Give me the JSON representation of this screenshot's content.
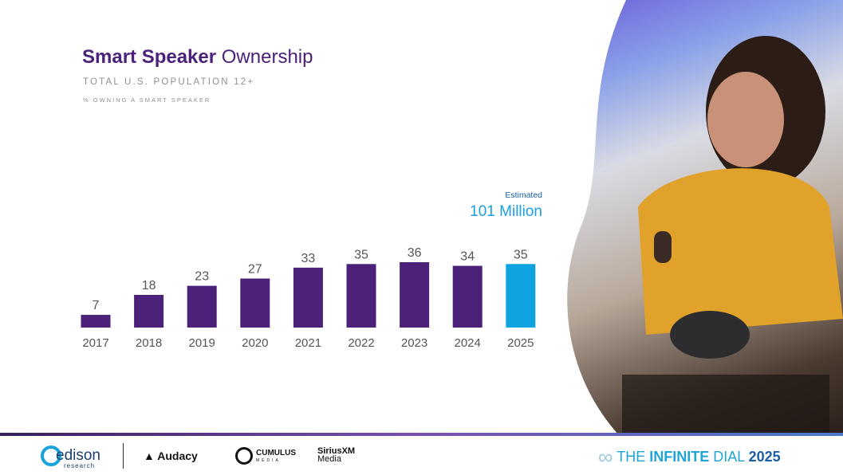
{
  "title": {
    "bold": "Smart Speaker",
    "rest": "Ownership"
  },
  "subtitle": "TOTAL U.S. POPULATION 12+",
  "note": "% OWNING A SMART SPEAKER",
  "estimate": {
    "label": "Estimated",
    "value": "101 Million"
  },
  "colors": {
    "primary": "#4b2179",
    "highlight": "#0fa3e2"
  },
  "chart_data": {
    "type": "bar",
    "title": "Smart Speaker Ownership",
    "xlabel": "",
    "ylabel": "% owning a smart speaker",
    "categories": [
      "2017",
      "2018",
      "2019",
      "2020",
      "2021",
      "2022",
      "2023",
      "2024",
      "2025"
    ],
    "values": [
      7,
      18,
      23,
      27,
      33,
      35,
      36,
      34,
      35
    ],
    "highlight_index": 8,
    "ylim": [
      0,
      36
    ],
    "grid": false
  },
  "footer": {
    "logos": {
      "edison": "edison",
      "edison_sub": "research",
      "audacy": "Audacy",
      "cumulus": "CUMULUS",
      "cumulus_sub": "MEDIA",
      "siriusxm": "SiriusXM",
      "siriusxm_sub": "Media"
    },
    "brand": {
      "the": "THE",
      "infinite": "INFINITE",
      "dial": "DIAL",
      "year": "2025"
    }
  }
}
